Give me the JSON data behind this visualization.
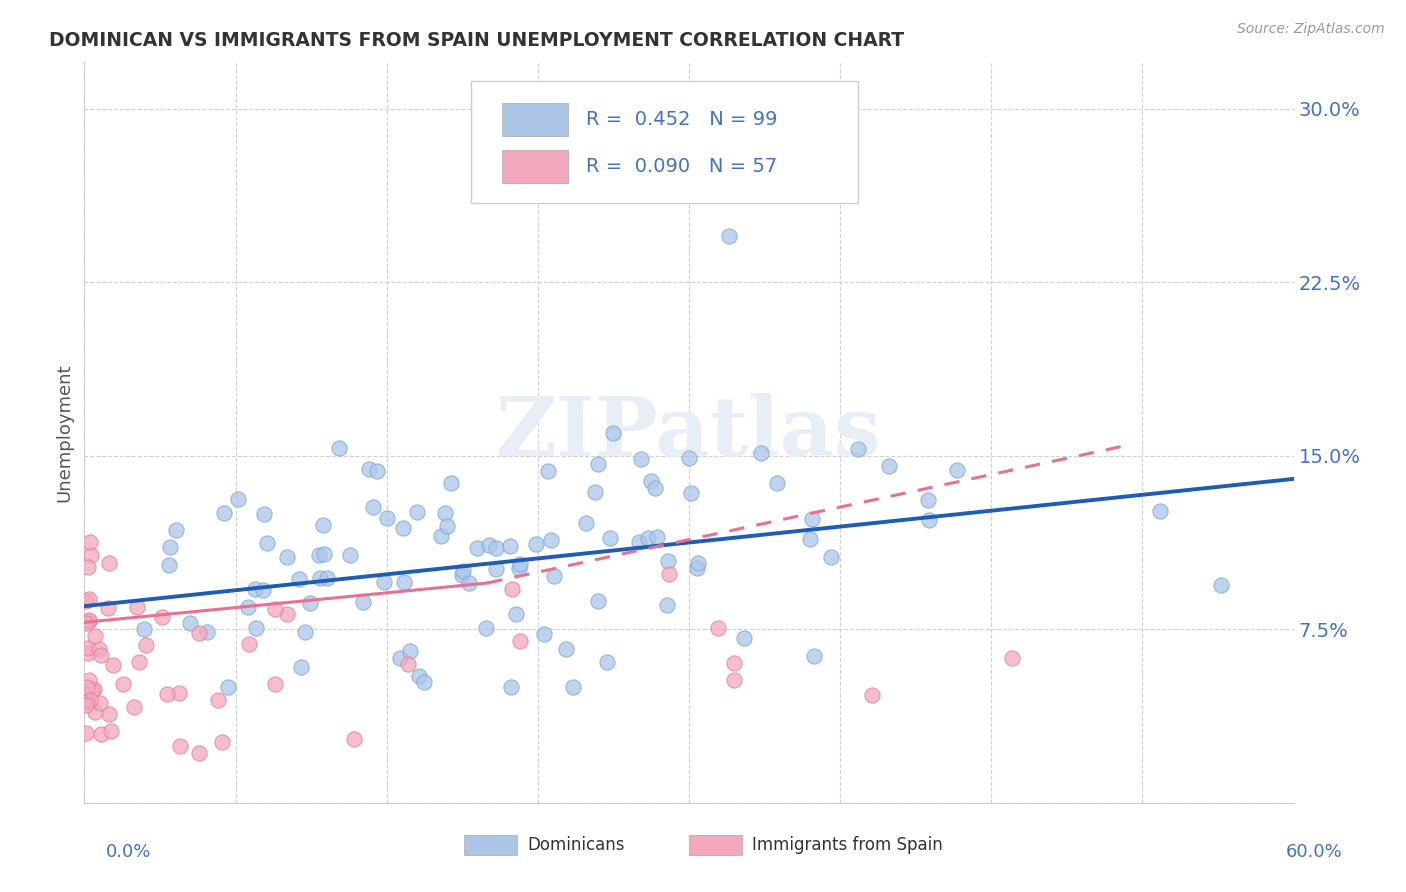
{
  "title": "DOMINICAN VS IMMIGRANTS FROM SPAIN UNEMPLOYMENT CORRELATION CHART",
  "source": "Source: ZipAtlas.com",
  "ylabel": "Unemployment",
  "yticks": [
    0.0,
    0.075,
    0.15,
    0.225,
    0.3
  ],
  "ytick_labels": [
    "",
    "7.5%",
    "15.0%",
    "22.5%",
    "30.0%"
  ],
  "xmin": 0.0,
  "xmax": 0.6,
  "ymin": 0.0,
  "ymax": 0.32,
  "dominicans_color": "#adc6e8",
  "spain_color": "#f4a8bc",
  "blue_line_color": "#1f5cb5",
  "pink_line_color": "#e87090",
  "watermark_color": "#e8eef5",
  "title_color": "#333333",
  "axis_color": "#4472c4",
  "grid_color": "#d0d0d0",
  "legend_text_color": "#4472c4",
  "legend_n_color": "#333333"
}
